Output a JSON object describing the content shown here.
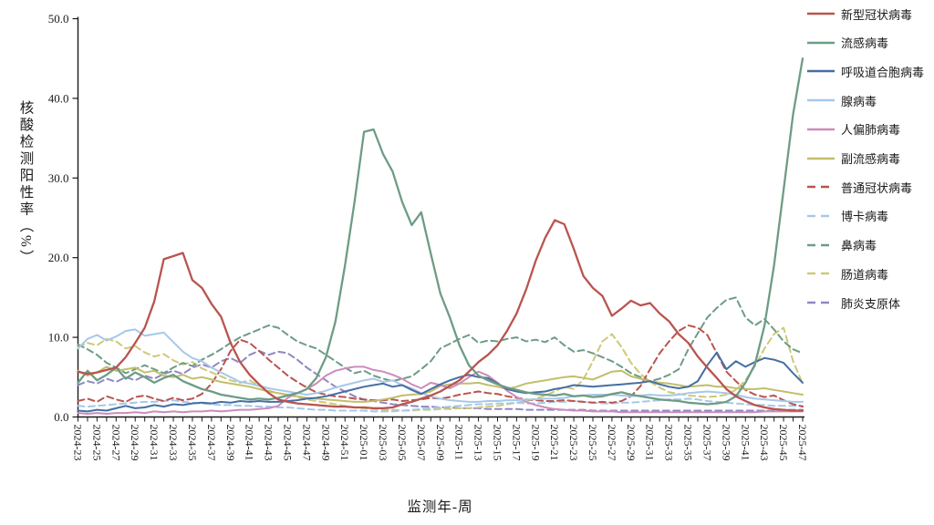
{
  "chart_data": {
    "type": "line",
    "title": "",
    "xlabel": "监测年-周",
    "ylabel": "核酸检测阳性率（%）",
    "ylim": [
      0,
      50
    ],
    "ytick_labels": [
      "0.0",
      "10.0",
      "20.0",
      "30.0",
      "40.0",
      "50.0"
    ],
    "grid": false,
    "legend_position": "right",
    "axis_color": "#1a1a1a",
    "weeks_per_label": 2,
    "x_tick_labels": [
      "2024-23",
      "2024-25",
      "2024-27",
      "2024-29",
      "2024-31",
      "2024-33",
      "2024-35",
      "2024-37",
      "2024-39",
      "2024-41",
      "2024-43",
      "2024-45",
      "2024-47",
      "2024-49",
      "2024-51",
      "2025-01",
      "2025-03",
      "2025-05",
      "2025-07",
      "2025-09",
      "2025-11",
      "2025-13",
      "2025-15",
      "2025-17",
      "2025-19",
      "2025-21",
      "2025-23",
      "2025-25",
      "2025-27",
      "2025-29",
      "2025-31",
      "2025-33",
      "2025-35",
      "2025-37",
      "2025-39",
      "2025-41",
      "2025-43",
      "2025-45",
      "2025-47"
    ],
    "series": [
      {
        "key": "covid",
        "name": "新型冠状病毒",
        "color": "#B9544F",
        "dashed": false,
        "values": [
          5.7,
          5.4,
          5.6,
          5.9,
          6.2,
          7.5,
          9.3,
          11.2,
          14.5,
          19.8,
          20.2,
          20.6,
          17.2,
          16.2,
          14.2,
          12.6,
          9.3,
          6.9,
          5.3,
          4.1,
          3.0,
          2.2,
          1.9,
          1.7,
          1.6,
          1.5,
          1.4,
          1.3,
          1.3,
          1.2,
          1.2,
          1.1,
          1.1,
          1.2,
          1.6,
          1.9,
          2.3,
          2.7,
          3.2,
          3.9,
          4.6,
          5.7,
          6.9,
          7.8,
          9.0,
          10.8,
          13.0,
          16.0,
          19.6,
          22.5,
          24.7,
          24.2,
          21.1,
          17.7,
          16.2,
          15.2,
          12.7,
          13.6,
          14.6,
          14.0,
          14.3,
          13.0,
          12.0,
          10.4,
          9.3,
          7.6,
          6.2,
          4.9,
          3.5,
          2.6,
          2.0,
          1.5,
          1.2,
          1.0,
          0.9,
          0.8,
          0.8
        ]
      },
      {
        "key": "influenza",
        "name": "流感病毒",
        "color": "#6D9C85",
        "dashed": false,
        "values": [
          4.3,
          5.8,
          4.6,
          5.3,
          6.2,
          4.8,
          5.6,
          5.0,
          4.3,
          4.9,
          5.3,
          4.5,
          4.0,
          3.5,
          3.2,
          2.8,
          2.6,
          2.4,
          2.2,
          2.3,
          2.2,
          2.4,
          2.7,
          3.0,
          3.5,
          4.9,
          7.5,
          12.0,
          19.0,
          27.0,
          35.8,
          36.1,
          33.0,
          30.8,
          27.0,
          24.1,
          25.7,
          20.5,
          15.5,
          12.5,
          9.0,
          6.5,
          5.2,
          4.6,
          4.1,
          3.7,
          3.4,
          3.1,
          2.9,
          2.8,
          2.7,
          2.9,
          2.6,
          2.7,
          2.5,
          2.6,
          2.9,
          3.1,
          2.8,
          2.6,
          2.4,
          2.2,
          2.1,
          2.0,
          1.8,
          1.7,
          1.6,
          1.7,
          1.9,
          2.6,
          4.3,
          6.6,
          11.5,
          19.0,
          28.5,
          38.0,
          45.0
        ]
      },
      {
        "key": "rsv",
        "name": "呼吸道合胞病毒",
        "color": "#456FA3",
        "dashed": false,
        "values": [
          0.8,
          0.7,
          0.9,
          0.8,
          1.1,
          1.4,
          1.1,
          1.2,
          1.5,
          1.3,
          1.6,
          1.5,
          1.7,
          1.8,
          1.7,
          1.9,
          1.8,
          2.0,
          1.9,
          2.0,
          1.9,
          1.9,
          2.0,
          2.1,
          2.3,
          2.4,
          2.6,
          2.9,
          3.2,
          3.5,
          3.8,
          4.0,
          4.2,
          3.8,
          4.0,
          3.4,
          2.9,
          3.5,
          4.1,
          4.6,
          5.0,
          5.3,
          5.0,
          4.9,
          4.2,
          3.5,
          3.2,
          3.0,
          3.1,
          3.2,
          3.5,
          3.7,
          4.0,
          3.9,
          3.8,
          3.9,
          4.0,
          4.1,
          4.2,
          4.3,
          4.5,
          4.1,
          3.8,
          3.6,
          3.8,
          4.5,
          6.5,
          8.1,
          6.0,
          7.0,
          6.3,
          6.9,
          7.4,
          7.2,
          6.8,
          5.5,
          4.3
        ]
      },
      {
        "key": "adenovirus",
        "name": "腺病毒",
        "color": "#A7C8E8",
        "dashed": false,
        "values": [
          8.6,
          9.8,
          10.3,
          9.6,
          10.1,
          10.8,
          11.0,
          10.2,
          10.4,
          10.6,
          9.4,
          8.2,
          7.4,
          7.0,
          6.2,
          5.6,
          5.0,
          4.4,
          4.2,
          3.9,
          3.6,
          3.4,
          3.2,
          3.0,
          2.8,
          3.0,
          3.3,
          3.7,
          4.0,
          4.3,
          4.6,
          4.8,
          4.4,
          4.6,
          4.0,
          3.6,
          3.0,
          2.6,
          2.3,
          2.1,
          2.0,
          1.9,
          1.9,
          2.0,
          2.0,
          2.1,
          2.1,
          2.2,
          2.2,
          2.3,
          2.3,
          2.4,
          2.6,
          2.7,
          2.8,
          2.8,
          2.8,
          2.7,
          2.6,
          2.7,
          2.8,
          2.7,
          2.7,
          2.8,
          3.0,
          3.1,
          3.2,
          3.1,
          3.0,
          2.8,
          2.5,
          2.3,
          2.2,
          2.1,
          2.0,
          1.9,
          1.9
        ]
      },
      {
        "key": "hmpv",
        "name": "人偏肺病毒",
        "color": "#CC8CBB",
        "dashed": false,
        "values": [
          0.5,
          0.4,
          0.5,
          0.4,
          0.5,
          0.5,
          0.6,
          0.5,
          0.7,
          0.6,
          0.7,
          0.6,
          0.7,
          0.7,
          0.8,
          0.7,
          0.8,
          0.9,
          0.9,
          1.0,
          1.1,
          1.4,
          2.4,
          3.0,
          3.5,
          4.2,
          5.2,
          5.8,
          6.1,
          6.3,
          6.3,
          5.9,
          5.7,
          5.3,
          4.8,
          4.1,
          3.6,
          4.3,
          4.0,
          3.6,
          4.2,
          5.0,
          5.7,
          5.2,
          4.3,
          3.3,
          2.5,
          1.9,
          1.5,
          1.2,
          1.0,
          0.9,
          0.8,
          0.8,
          0.7,
          0.7,
          0.7,
          0.6,
          0.6,
          0.6,
          0.6,
          0.6,
          0.6,
          0.6,
          0.6,
          0.6,
          0.6,
          0.6,
          0.6,
          0.6,
          0.6,
          0.6,
          0.7,
          0.7,
          0.7,
          0.7,
          0.7
        ]
      },
      {
        "key": "parainfluenza",
        "name": "副流感病毒",
        "color": "#C2BE6B",
        "dashed": false,
        "values": [
          5.8,
          5.2,
          5.6,
          6.3,
          5.8,
          6.0,
          6.2,
          5.6,
          5.8,
          5.2,
          5.0,
          5.3,
          4.8,
          5.0,
          4.7,
          4.4,
          4.2,
          4.0,
          3.8,
          3.5,
          3.2,
          3.0,
          2.8,
          2.6,
          2.4,
          2.3,
          2.2,
          2.1,
          2.0,
          1.9,
          1.9,
          2.0,
          2.2,
          2.4,
          2.7,
          2.8,
          2.9,
          3.2,
          3.9,
          4.1,
          4.2,
          4.2,
          4.3,
          4.0,
          3.8,
          3.5,
          3.8,
          4.2,
          4.4,
          4.6,
          4.8,
          5.0,
          5.1,
          4.9,
          4.7,
          5.2,
          5.7,
          5.8,
          5.1,
          4.8,
          4.5,
          4.3,
          4.2,
          4.0,
          3.8,
          3.9,
          4.0,
          3.8,
          3.8,
          3.6,
          3.5,
          3.5,
          3.6,
          3.4,
          3.2,
          3.0,
          2.8
        ]
      },
      {
        "key": "common-coronavirus",
        "name": "普通冠状病毒",
        "color": "#B9544F",
        "dashed": true,
        "values": [
          2.0,
          2.3,
          1.9,
          2.6,
          2.2,
          1.9,
          2.5,
          2.7,
          2.3,
          2.0,
          2.4,
          2.1,
          2.3,
          2.9,
          4.2,
          6.0,
          8.3,
          9.7,
          9.3,
          8.3,
          7.2,
          6.2,
          5.2,
          4.4,
          3.7,
          3.1,
          2.8,
          2.6,
          2.5,
          2.3,
          2.2,
          2.1,
          2.1,
          2.2,
          2.0,
          2.1,
          2.2,
          2.4,
          2.3,
          2.5,
          2.8,
          3.0,
          3.2,
          3.0,
          2.9,
          2.6,
          2.4,
          2.2,
          2.1,
          2.0,
          2.0,
          2.1,
          2.0,
          1.9,
          1.8,
          1.9,
          1.8,
          2.0,
          2.6,
          3.9,
          6.0,
          8.0,
          9.5,
          10.8,
          11.5,
          11.2,
          10.3,
          8.0,
          5.7,
          4.5,
          3.4,
          2.8,
          2.5,
          2.7,
          2.1,
          1.6,
          1.3
        ]
      },
      {
        "key": "bocavirus",
        "name": "博卡病毒",
        "color": "#A7C8E8",
        "dashed": true,
        "values": [
          1.4,
          1.3,
          1.4,
          1.5,
          1.6,
          1.7,
          1.8,
          1.9,
          1.9,
          2.0,
          2.1,
          1.9,
          1.8,
          1.7,
          1.6,
          1.5,
          1.5,
          1.4,
          1.4,
          1.3,
          1.3,
          1.2,
          1.2,
          1.1,
          1.0,
          0.9,
          0.9,
          0.8,
          0.8,
          0.8,
          0.8,
          0.7,
          0.7,
          0.7,
          0.8,
          0.9,
          1.0,
          1.1,
          1.2,
          1.3,
          1.4,
          1.5,
          1.6,
          1.6,
          1.7,
          1.7,
          1.8,
          1.7,
          1.7,
          1.8,
          1.9,
          1.9,
          2.0,
          1.9,
          1.8,
          1.7,
          1.7,
          1.8,
          1.8,
          1.9,
          2.0,
          2.1,
          2.2,
          2.2,
          2.3,
          2.2,
          2.0,
          1.9,
          1.8,
          1.7,
          1.6,
          1.5,
          1.5,
          1.4,
          1.4,
          1.4,
          1.4
        ]
      },
      {
        "key": "rhinovirus",
        "name": "鼻病毒",
        "color": "#6D9C85",
        "dashed": true,
        "values": [
          9.1,
          8.5,
          7.8,
          6.8,
          6.2,
          5.5,
          6.0,
          6.5,
          6.0,
          5.5,
          6.2,
          6.8,
          6.4,
          7.2,
          7.8,
          8.5,
          9.3,
          10.0,
          10.5,
          11.0,
          11.5,
          11.2,
          10.3,
          9.5,
          9.0,
          8.6,
          7.8,
          7.0,
          6.2,
          5.5,
          5.8,
          5.2,
          4.8,
          4.5,
          4.8,
          5.1,
          6.0,
          7.0,
          8.6,
          9.2,
          9.8,
          10.3,
          9.3,
          9.6,
          9.5,
          9.8,
          10.0,
          9.5,
          9.7,
          9.4,
          10.0,
          9.0,
          8.2,
          8.4,
          8.0,
          7.5,
          7.0,
          6.3,
          5.5,
          5.0,
          4.5,
          4.8,
          5.3,
          6.0,
          8.5,
          10.5,
          12.5,
          13.7,
          14.7,
          15.0,
          12.5,
          11.5,
          12.3,
          11.0,
          9.5,
          8.5,
          8.0
        ]
      },
      {
        "key": "enterovirus",
        "name": "肠道病毒",
        "color": "#CDC979",
        "dashed": true,
        "values": [
          8.8,
          9.3,
          9.0,
          9.8,
          9.5,
          8.6,
          8.9,
          8.1,
          7.6,
          7.9,
          7.1,
          6.6,
          6.9,
          6.1,
          5.6,
          5.1,
          4.6,
          4.3,
          4.6,
          3.9,
          3.3,
          3.0,
          2.8,
          2.5,
          2.2,
          2.0,
          1.8,
          1.6,
          1.4,
          1.2,
          1.1,
          1.0,
          0.9,
          0.9,
          0.8,
          0.8,
          0.9,
          0.9,
          1.0,
          1.0,
          1.1,
          1.1,
          1.2,
          1.3,
          1.4,
          1.6,
          1.8,
          2.0,
          2.3,
          2.7,
          3.2,
          3.8,
          3.5,
          4.7,
          7.0,
          9.5,
          10.4,
          8.8,
          6.8,
          5.4,
          4.4,
          3.7,
          3.1,
          2.9,
          2.7,
          2.6,
          2.5,
          2.6,
          2.8,
          3.4,
          4.6,
          6.4,
          8.6,
          10.4,
          11.2,
          7.0,
          4.2
        ]
      },
      {
        "key": "mycoplasma",
        "name": "肺炎支原体",
        "color": "#9087C1",
        "dashed": true,
        "values": [
          4.0,
          4.5,
          4.2,
          4.8,
          4.4,
          5.0,
          4.6,
          5.2,
          4.8,
          5.4,
          5.8,
          5.4,
          6.2,
          6.6,
          6.2,
          7.0,
          7.4,
          6.8,
          7.8,
          8.3,
          7.8,
          8.2,
          8.0,
          7.2,
          6.2,
          5.4,
          4.6,
          3.8,
          3.2,
          2.6,
          2.2,
          2.0,
          1.8,
          1.6,
          1.5,
          1.4,
          1.3,
          1.3,
          1.2,
          1.2,
          1.1,
          1.1,
          1.1,
          1.0,
          1.0,
          1.0,
          1.0,
          0.9,
          0.9,
          0.9,
          0.9,
          0.9,
          0.9,
          0.9,
          0.8,
          0.8,
          0.8,
          0.8,
          0.8,
          0.8,
          0.8,
          0.8,
          0.8,
          0.8,
          0.8,
          0.8,
          0.8,
          0.8,
          0.8,
          0.8,
          0.8,
          0.8,
          0.8,
          0.8,
          0.9,
          0.9,
          0.9
        ]
      }
    ]
  }
}
